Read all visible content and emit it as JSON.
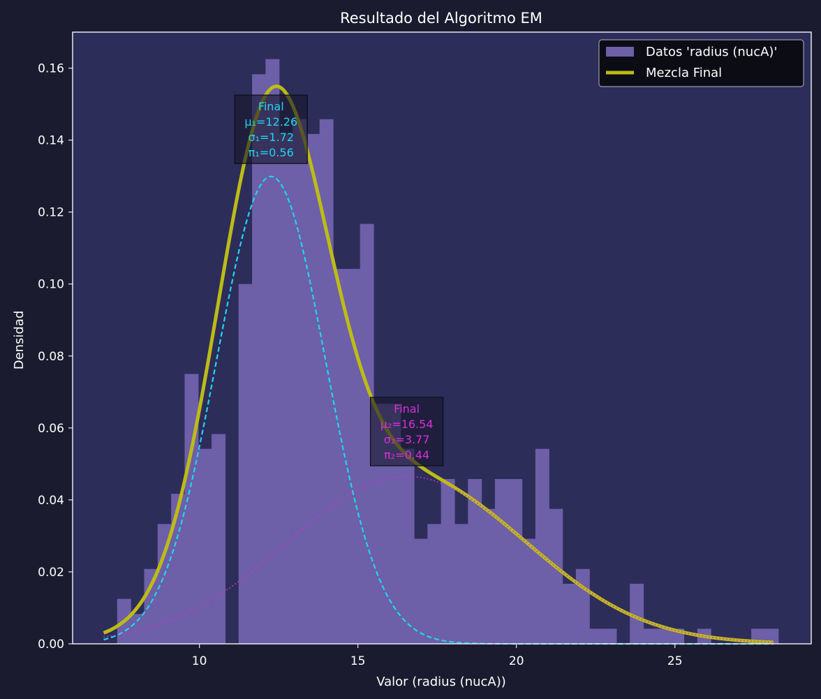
{
  "colors": {
    "figure_bg": "#1b1b2f",
    "plot_bg": "#2d2d5a",
    "histogram": "#6d5fa8",
    "mixture": "#bcbc16",
    "component1": "#1ed6f0",
    "component2": "#d82fd8",
    "text": "#ffffff",
    "axis": "#e8e8f0"
  },
  "chart_data": {
    "type": "histogram",
    "title": "Resultado del Algoritmo EM",
    "xlabel": "Valor (radius (nucA))",
    "ylabel": "Densidad",
    "xlim": [
      6.0,
      29.3
    ],
    "ylim": [
      0.0,
      0.17
    ],
    "xticks": [
      10,
      15,
      20,
      25
    ],
    "yticks": [
      0.0,
      0.02,
      0.04,
      0.06,
      0.08,
      0.1,
      0.12,
      0.14,
      0.16
    ],
    "grid": false,
    "legend": {
      "position": "top-right",
      "entries": [
        {
          "label": "Datos 'radius (nucA)'",
          "kind": "patch",
          "color": "#6d5fa8"
        },
        {
          "label": "Mezcla Final",
          "kind": "line",
          "color": "#bcbc16"
        }
      ]
    },
    "histogram": {
      "bin_start": 6.98,
      "bin_width": 0.4256,
      "densities": [
        0.0,
        0.0125,
        0.0083,
        0.0208,
        0.0333,
        0.0417,
        0.075,
        0.0542,
        0.0583,
        0.0,
        0.1,
        0.1583,
        0.1625,
        0.1417,
        0.1458,
        0.1417,
        0.1458,
        0.1042,
        0.1042,
        0.1167,
        0.0667,
        0.0667,
        0.0542,
        0.0292,
        0.0333,
        0.0458,
        0.0333,
        0.0458,
        0.0375,
        0.0458,
        0.0458,
        0.0292,
        0.0542,
        0.0375,
        0.0167,
        0.0208,
        0.0042,
        0.0042,
        0.0,
        0.0167,
        0.0042,
        0.0042,
        0.0042,
        0.0,
        0.0042,
        0.0,
        0.0,
        0.0,
        0.0042,
        0.0042
      ]
    },
    "components": [
      {
        "mu": 12.26,
        "sigma": 1.72,
        "pi": 0.56,
        "color": "#1ed6f0",
        "style": "dashed"
      },
      {
        "mu": 16.54,
        "sigma": 3.77,
        "pi": 0.44,
        "color": "#d82fd8",
        "style": "dotted"
      }
    ],
    "mixture_range": [
      6.98,
      28.11
    ],
    "annotations": [
      {
        "lines": [
          "Final",
          "μ₁=12.26",
          "σ₁=1.72",
          "π₁=0.56"
        ],
        "color": "#1ed6f0",
        "at": [
          12.26,
          0.143
        ]
      },
      {
        "lines": [
          "Final",
          "μ₂=16.54",
          "σ₂=3.77",
          "π₂=0.44"
        ],
        "color": "#d82fd8",
        "at": [
          16.54,
          0.059
        ]
      }
    ]
  }
}
